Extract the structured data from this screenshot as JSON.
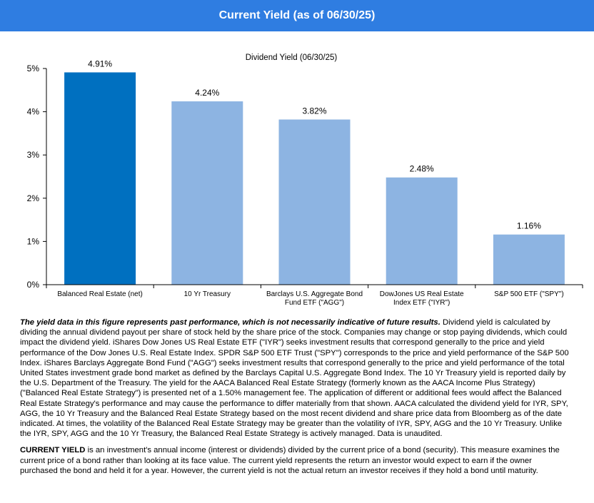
{
  "header": {
    "title": "Current Yield  (as of 06/30/25)"
  },
  "chart_data": {
    "type": "bar",
    "title": "Dividend Yield (06/30/25)",
    "categories": [
      [
        "Balanced Real Estate (net)"
      ],
      [
        "10 Yr Treasury"
      ],
      [
        "Barclays U.S. Aggregate Bond",
        "Fund ETF (\"AGG\")"
      ],
      [
        "DowJones US Real Estate",
        "Index ETF (\"IYR\")"
      ],
      [
        "S&P 500 ETF (\"SPY\")"
      ]
    ],
    "values": [
      4.91,
      4.24,
      3.82,
      2.48,
      1.16
    ],
    "data_labels": [
      "4.91%",
      "4.24%",
      "3.82%",
      "2.48%",
      "1.16%"
    ],
    "ylim": [
      0,
      5
    ],
    "yticks": [
      0,
      1,
      2,
      3,
      4,
      5
    ],
    "ytick_labels": [
      "0%",
      "1%",
      "2%",
      "3%",
      "4%",
      "5%"
    ],
    "colors": [
      "#0070c0",
      "#8db4e2",
      "#8db4e2",
      "#8db4e2",
      "#8db4e2"
    ],
    "grid": false,
    "legend": "none"
  },
  "notes": {
    "disclaimer_lead": "The yield data in this figure represents past performance, which is not necessarily indicative of future results.",
    "disclaimer_body": " Dividend yield is calculated by dividing the annual dividend payout per share of stock held by the share price of the stock. Companies may change or stop paying dividends, which could impact the dividend yield. iShares Dow Jones US Real Estate ETF (\"IYR\") seeks investment results that correspond generally to the price and yield performance of the Dow Jones U.S. Real Estate Index. SPDR S&P 500 ETF Trust (\"SPY\") corresponds to the price and yield performance of the S&P 500 Index. iShares Barclays Aggregate Bond Fund (\"AGG\") seeks investment results that correspond generally to the price and yield performance of the total United States investment grade bond market as defined by the Barclays Capital U.S. Aggregate Bond Index. The 10 Yr Treasury yield is reported daily by the U.S. Department of the Treasury. The yield for the AACA Balanced Real Estate Strategy (formerly known as the AACA Income Plus Strategy) (\"Balanced Real Estate Strategy\") is presented net of a 1.50% management fee. The application of different or additional fees would affect the Balanced Real Estate Strategy's performance and may cause the performance to differ materially from that shown. AACA calculated the dividend yield for IYR, SPY, AGG, the 10 Yr Treasury and the Balanced Real Estate Strategy based on the most recent dividend and share price data from Bloomberg as of the date indicated. At times, the volatility of the Balanced Real Estate Strategy may be greater than the volatility of IYR, SPY, AGG and the 10 Yr Treasury. Unlike the IYR, SPY, AGG and the 10 Yr Treasury, the Balanced Real Estate Strategy is actively managed. Data is unaudited.",
    "definition_term": "CURRENT YIELD",
    "definition_body": " is an investment's annual income (interest or dividends) divided by the current price of a bond (security). This measure examines the current price of a bond rather than looking at its face value. The current yield represents the return an investor would expect to earn if the owner purchased the bond and held it for a year. However, the current yield is not the actual return an investor receives if they hold a bond until maturity."
  }
}
